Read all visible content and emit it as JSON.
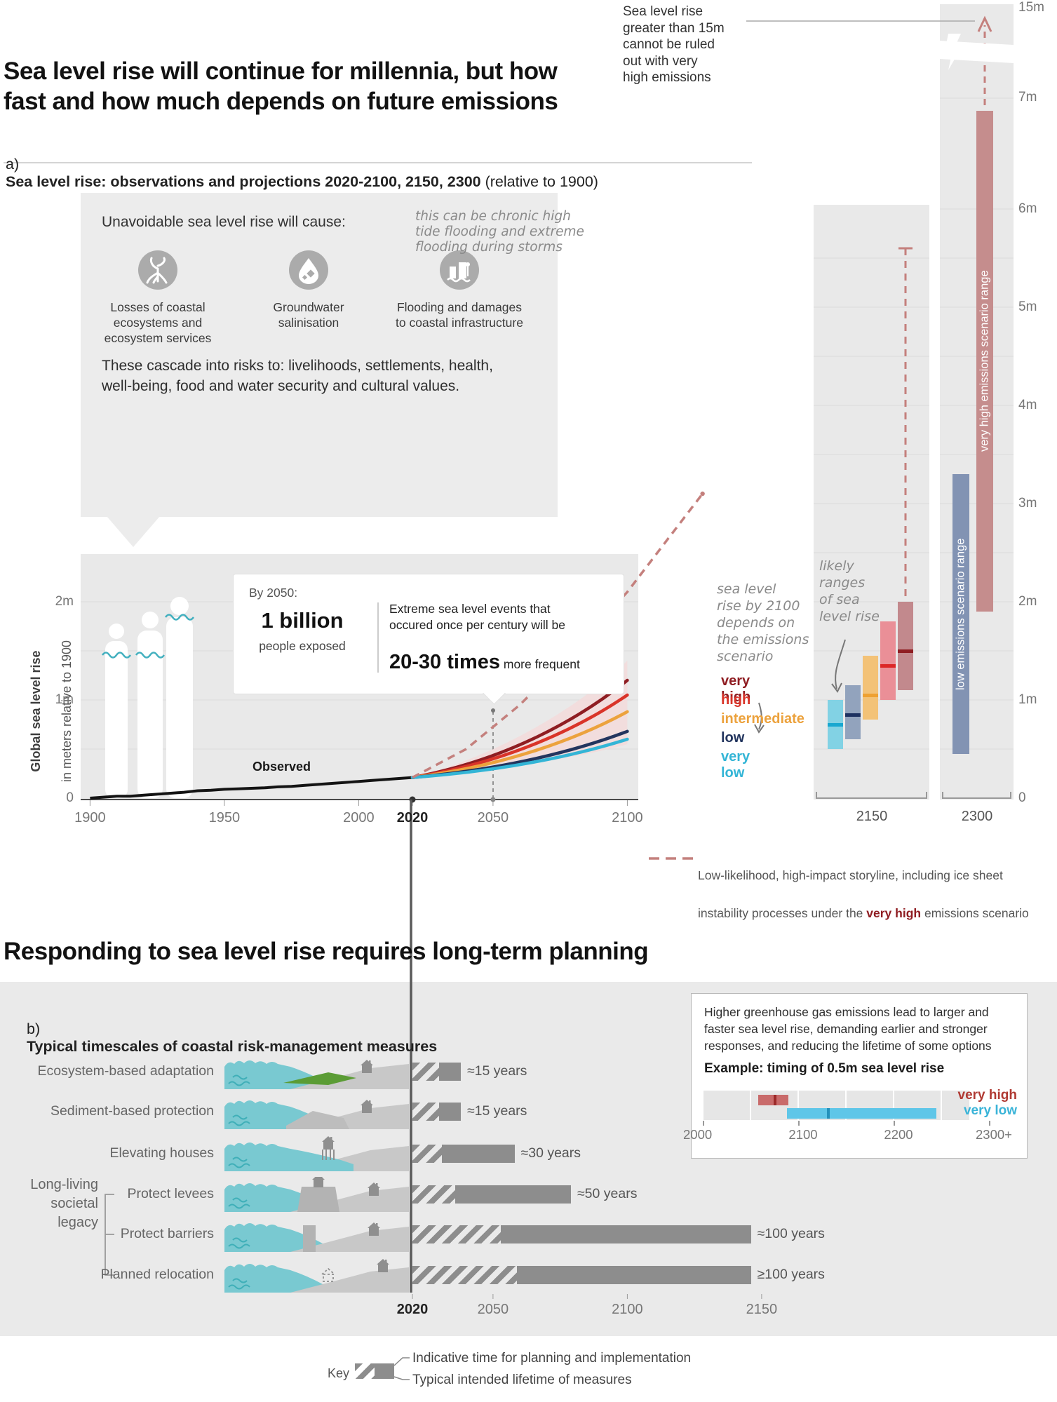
{
  "page": {
    "title": "Sea level rise will continue for millennia, but how\nfast and how much depends on future emissions",
    "section2_title": "Responding to sea level rise requires long-term planning"
  },
  "panel_a": {
    "label_prefix": "a)",
    "heading": "Sea level rise: observations and projections 2020-2100, 2150, 2300",
    "heading_suffix": " (relative to 1900)",
    "callout": {
      "title": "Unavoidable sea level rise will cause:",
      "impacts": [
        {
          "icon": "mangrove-icon",
          "label": "Losses of coastal\necosystems and\necosystem services"
        },
        {
          "icon": "droplet-icon",
          "label": "Groundwater\nsalinisation"
        },
        {
          "icon": "flood-icon",
          "label": "Flooding and damages\nto coastal infrastructure"
        }
      ],
      "flood_note": "this can be chronic high\ntide flooding and extreme\nflooding during storms",
      "cascade": "These cascade into risks to: livelihoods, settlements, health,\nwell-being, food and water security and cultural values."
    },
    "bubble": {
      "intro": "By 2050:",
      "stat_value": "1 billion",
      "stat_label": "people exposed",
      "right_intro": "Extreme sea level events that\noccured once per century will be",
      "big": "20-30 times",
      "big_suffix": " more frequent"
    },
    "observed_label": "Observed",
    "ylabel_bold": "Global sea level rise",
    "ylabel_rest": "in meters relative to 1900",
    "scenario_note": "sea level\nrise by 2100\ndepends on\nthe emissions\nscenario",
    "likely_note": "likely\nranges\nof sea\nlevel rise",
    "top_note": "Sea level rise\ngreater than 15m\ncannot be ruled\nout with very\nhigh emissions",
    "storyline_key_line1": "Low-likelihood, high-impact storyline, including ice sheet",
    "storyline_key_line2_pre": "instability processes under the ",
    "storyline_key_bold": "very high",
    "storyline_key_post": " emissions scenario"
  },
  "chart_data": {
    "type": "line",
    "title": "Sea level rise: observations and projections 2020-2100, 2150, 2300 (relative to 1900)",
    "ylabel": "Global sea level rise in meters relative to 1900",
    "units": "m",
    "main_axis_years": [
      1900,
      1950,
      2000,
      2020,
      2050,
      2100
    ],
    "left_axis": [
      [
        "2m",
        2
      ],
      [
        "1m",
        1
      ],
      [
        "0",
        0
      ]
    ],
    "right_axis_labels": [
      "15m",
      "7m",
      "6m",
      "5m",
      "4m",
      "3m",
      "2m",
      "1m",
      "0"
    ],
    "panel_years": [
      "2150",
      "2300"
    ],
    "observed": [
      [
        1900,
        0
      ],
      [
        1905,
        0.01
      ],
      [
        1910,
        0.02
      ],
      [
        1915,
        0.02
      ],
      [
        1920,
        0.03
      ],
      [
        1925,
        0.04
      ],
      [
        1930,
        0.05
      ],
      [
        1935,
        0.06
      ],
      [
        1940,
        0.075
      ],
      [
        1945,
        0.08
      ],
      [
        1950,
        0.09
      ],
      [
        1955,
        0.095
      ],
      [
        1960,
        0.1
      ],
      [
        1965,
        0.105
      ],
      [
        1970,
        0.115
      ],
      [
        1975,
        0.12
      ],
      [
        1980,
        0.13
      ],
      [
        1985,
        0.14
      ],
      [
        1990,
        0.15
      ],
      [
        1995,
        0.16
      ],
      [
        2000,
        0.17
      ],
      [
        2005,
        0.18
      ],
      [
        2010,
        0.19
      ],
      [
        2015,
        0.2
      ],
      [
        2020,
        0.21
      ]
    ],
    "scenarios": [
      {
        "label": "very high",
        "color": "#8f1d22",
        "value_2100": 1.2
      },
      {
        "label": "high",
        "color": "#d93429",
        "value_2100": 1.05
      },
      {
        "label": "intermediate",
        "color": "#eca23d",
        "value_2100": 0.88
      },
      {
        "label": "low",
        "color": "#23355e",
        "value_2100": 0.68
      },
      {
        "label": "very low",
        "color": "#33b5d6",
        "value_2100": 0.6
      }
    ],
    "shading_2100": [
      0.55,
      1.4
    ],
    "storyline_dashed": [
      [
        2020,
        0.21
      ],
      [
        2040,
        0.5
      ],
      [
        2060,
        0.95
      ],
      [
        2080,
        1.5
      ],
      [
        2100,
        2.1
      ],
      [
        2128,
        3.1
      ]
    ],
    "ranges_2150": [
      {
        "scenario": "very low",
        "low": 0.5,
        "high": 1.0,
        "median": 0.75,
        "color": "#82d2e4",
        "median_color": "#18a7d0"
      },
      {
        "scenario": "low",
        "low": 0.6,
        "high": 1.15,
        "median": 0.85,
        "color": "#92a3bd",
        "median_color": "#1d3160"
      },
      {
        "scenario": "intermediate",
        "low": 0.8,
        "high": 1.45,
        "median": 1.05,
        "color": "#f3c277",
        "median_color": "#eea132"
      },
      {
        "scenario": "high",
        "low": 1.0,
        "high": 1.8,
        "median": 1.35,
        "color": "#ea8f97",
        "median_color": "#dc2727"
      },
      {
        "scenario": "very high",
        "low": 1.1,
        "high": 2.0,
        "median": 1.5,
        "color": "#c2898d",
        "median_color": "#8f1d22"
      }
    ],
    "storyline_2150": {
      "bottom": 2.0,
      "top": 5.6
    },
    "ranges_2300": [
      {
        "scenario": "low emissions scenario range",
        "low": 0.45,
        "high": 3.3,
        "color": "#8293b3"
      },
      {
        "scenario": "very high emissions scenario range",
        "low": 1.9,
        "high": 7.0,
        "color": "#c58d8d",
        "note": ">15m cannot be ruled out"
      }
    ],
    "timing_05m": {
      "axis_start": 2000,
      "axis_end": 2300,
      "very_high": [
        2058,
        2090
      ],
      "very_high_median": 2074,
      "very_low": [
        2088,
        2245
      ],
      "very_low_median": 2130
    },
    "measures_timeline": [
      {
        "label": "Ecosystem-based adaptation",
        "scene_icon": "ecosystem-scene",
        "start": 2020,
        "planning_end": 2030,
        "lifetime_end": 2038,
        "duration": "≈15 years"
      },
      {
        "label": "Sediment-based protection",
        "scene_icon": "sediment-scene",
        "start": 2020,
        "planning_end": 2030,
        "lifetime_end": 2038,
        "duration": "≈15 years"
      },
      {
        "label": "Elevating houses",
        "scene_icon": "elevated-house-scene",
        "start": 2020,
        "planning_end": 2031,
        "lifetime_end": 2058,
        "duration": "≈30 years"
      },
      {
        "label": "Protect levees",
        "scene_icon": "levee-scene",
        "start": 2020,
        "planning_end": 2036,
        "lifetime_end": 2079,
        "duration": "≈50 years"
      },
      {
        "label": "Protect barriers",
        "scene_icon": "barrier-scene",
        "start": 2020,
        "planning_end": 2053,
        "lifetime_end": 2146,
        "duration": "≈100 years"
      },
      {
        "label": "Planned relocation",
        "scene_icon": "relocation-scene",
        "start": 2020,
        "planning_end": 2059,
        "lifetime_end": 2146,
        "duration": "≥100 years"
      }
    ]
  },
  "panel_b": {
    "label_prefix": "b)",
    "heading": "Typical timescales of coastal risk-management measures",
    "group_label": "Long-living\nsocietal\nlegacy",
    "axis_years": [
      "2020",
      "2050",
      "2100",
      "2150"
    ],
    "key": {
      "label": "Key",
      "line1": "Indicative time for planning and implementation",
      "line2": "Typical intended lifetime of measures"
    },
    "inset": {
      "text": "Higher greenhouse gas emissions lead to larger and\nfaster sea level rise, demanding earlier and stronger\nresponses, and reducing the lifetime of some options",
      "example": "Example: timing of 0.5m sea level rise",
      "very_high_label": "very high",
      "very_low_label": "very low",
      "axis": [
        "2000",
        "2100",
        "2200",
        "2300+"
      ]
    }
  },
  "colors": {
    "very_high": "#8f1d22",
    "high": "#d93429",
    "intermediate": "#eca23d",
    "low": "#23355e",
    "very_low": "#33b5d6",
    "storyline": "#c4807d",
    "observed": "#141414",
    "panel_gray": "#e9e9e9",
    "inset_very_high_bar": "#c96b6b",
    "inset_very_low_bar": "#5fc6e8",
    "measure_bar": "#8d8d8d"
  }
}
